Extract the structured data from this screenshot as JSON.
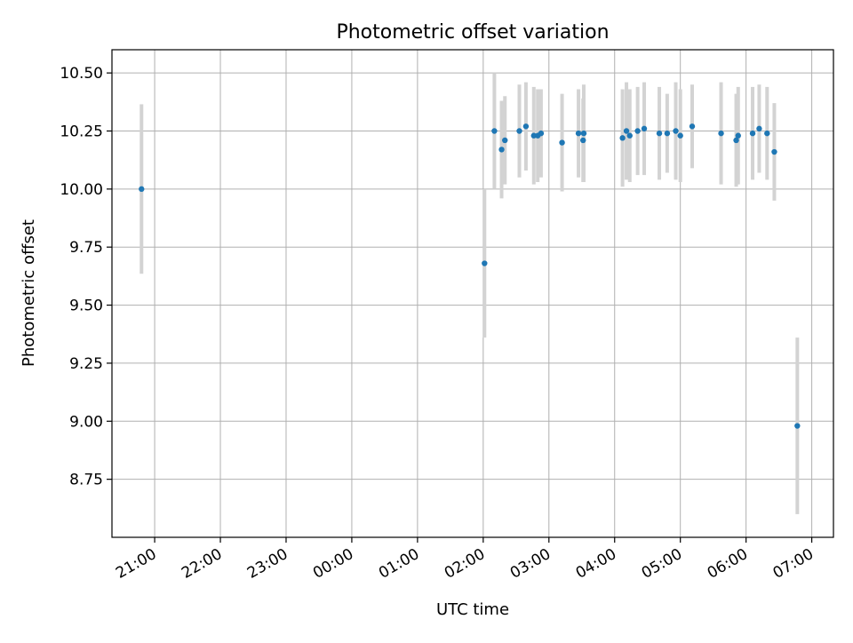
{
  "chart_data": {
    "type": "scatter",
    "title": "Photometric offset variation",
    "xlabel": "UTC time",
    "ylabel": "Photometric offset",
    "x_axis": {
      "ticks": [
        {
          "label": "21:00",
          "hours": 21
        },
        {
          "label": "22:00",
          "hours": 22
        },
        {
          "label": "23:00",
          "hours": 23
        },
        {
          "label": "00:00",
          "hours": 24
        },
        {
          "label": "01:00",
          "hours": 25
        },
        {
          "label": "02:00",
          "hours": 26
        },
        {
          "label": "03:00",
          "hours": 27
        },
        {
          "label": "04:00",
          "hours": 28
        },
        {
          "label": "05:00",
          "hours": 29
        },
        {
          "label": "06:00",
          "hours": 30
        },
        {
          "label": "07:00",
          "hours": 31
        }
      ],
      "range_hours": [
        20.35,
        31.33
      ]
    },
    "y_axis": {
      "ticks": [
        8.75,
        9.0,
        9.25,
        9.5,
        9.75,
        10.0,
        10.25,
        10.5
      ],
      "tick_labels": [
        "8.75",
        "9.00",
        "9.25",
        "9.50",
        "9.75",
        "10.00",
        "10.25",
        "10.50"
      ],
      "range": [
        8.5,
        10.6
      ]
    },
    "grid": true,
    "colors": {
      "point": "#1f77b4",
      "errorbar": "#d3d3d3",
      "grid": "#b0b0b0"
    },
    "series": [
      {
        "points": [
          {
            "t": "20:47",
            "hours": 20.8,
            "y": 10.0,
            "err": 0.365
          },
          {
            "t": "02:01",
            "hours": 26.02,
            "y": 9.68,
            "err": 0.32
          },
          {
            "t": "02:10",
            "hours": 26.17,
            "y": 10.25,
            "err": 0.25
          },
          {
            "t": "02:17",
            "hours": 26.28,
            "y": 10.17,
            "err": 0.21
          },
          {
            "t": "02:20",
            "hours": 26.33,
            "y": 10.21,
            "err": 0.19
          },
          {
            "t": "02:33",
            "hours": 26.55,
            "y": 10.25,
            "err": 0.2
          },
          {
            "t": "02:39",
            "hours": 26.65,
            "y": 10.27,
            "err": 0.19
          },
          {
            "t": "02:46",
            "hours": 26.77,
            "y": 10.23,
            "err": 0.21
          },
          {
            "t": "02:50",
            "hours": 26.83,
            "y": 10.23,
            "err": 0.2
          },
          {
            "t": "02:53",
            "hours": 26.88,
            "y": 10.24,
            "err": 0.19
          },
          {
            "t": "03:12",
            "hours": 27.2,
            "y": 10.2,
            "err": 0.21
          },
          {
            "t": "03:27",
            "hours": 27.45,
            "y": 10.24,
            "err": 0.19
          },
          {
            "t": "03:31",
            "hours": 27.52,
            "y": 10.21,
            "err": 0.18
          },
          {
            "t": "03:32",
            "hours": 27.53,
            "y": 10.24,
            "err": 0.21
          },
          {
            "t": "04:07",
            "hours": 28.12,
            "y": 10.22,
            "err": 0.21
          },
          {
            "t": "04:11",
            "hours": 28.18,
            "y": 10.25,
            "err": 0.21
          },
          {
            "t": "04:14",
            "hours": 28.23,
            "y": 10.23,
            "err": 0.2
          },
          {
            "t": "04:21",
            "hours": 28.35,
            "y": 10.25,
            "err": 0.19
          },
          {
            "t": "04:27",
            "hours": 28.45,
            "y": 10.26,
            "err": 0.2
          },
          {
            "t": "04:41",
            "hours": 28.68,
            "y": 10.24,
            "err": 0.2
          },
          {
            "t": "04:48",
            "hours": 28.8,
            "y": 10.24,
            "err": 0.17
          },
          {
            "t": "04:56",
            "hours": 28.93,
            "y": 10.25,
            "err": 0.21
          },
          {
            "t": "05:00",
            "hours": 29.0,
            "y": 10.23,
            "err": 0.2
          },
          {
            "t": "05:11",
            "hours": 29.18,
            "y": 10.27,
            "err": 0.18
          },
          {
            "t": "05:37",
            "hours": 29.62,
            "y": 10.24,
            "err": 0.22
          },
          {
            "t": "05:51",
            "hours": 29.85,
            "y": 10.21,
            "err": 0.2
          },
          {
            "t": "05:53",
            "hours": 29.88,
            "y": 10.23,
            "err": 0.21
          },
          {
            "t": "06:06",
            "hours": 30.1,
            "y": 10.24,
            "err": 0.2
          },
          {
            "t": "06:12",
            "hours": 30.2,
            "y": 10.26,
            "err": 0.19
          },
          {
            "t": "06:19",
            "hours": 30.32,
            "y": 10.24,
            "err": 0.2
          },
          {
            "t": "06:26",
            "hours": 30.43,
            "y": 10.16,
            "err": 0.21
          },
          {
            "t": "06:47",
            "hours": 30.78,
            "y": 8.98,
            "err": 0.38
          }
        ]
      }
    ]
  }
}
